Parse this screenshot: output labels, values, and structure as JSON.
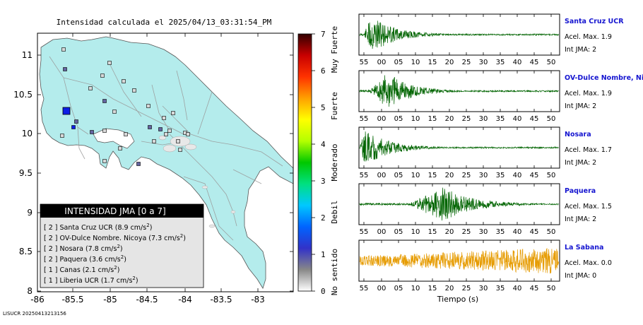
{
  "title": "Intensidad calculada el 2025/04/13_03:31:54_PM",
  "footer_id": "LISUCR 20250413213156",
  "map": {
    "x_ticks": [
      {
        "v": -86,
        "label": "-86"
      },
      {
        "v": -85.5,
        "label": "-85.5"
      },
      {
        "v": -85,
        "label": "-85"
      },
      {
        "v": -84.5,
        "label": "-84.5"
      },
      {
        "v": -84,
        "label": "-84"
      },
      {
        "v": -83.5,
        "label": "-83.5"
      },
      {
        "v": -83,
        "label": "-83"
      }
    ],
    "y_ticks": [
      {
        "v": 11,
        "label": "11"
      },
      {
        "v": 10.5,
        "label": "10.5"
      },
      {
        "v": 10,
        "label": "10"
      },
      {
        "v": 9.5,
        "label": "9.5"
      },
      {
        "v": 9,
        "label": "9"
      },
      {
        "v": 8.5,
        "label": "8.5"
      },
      {
        "v": 8,
        "label": "8"
      }
    ],
    "xlim": [
      -86,
      -83.5
    ],
    "ylim": [
      8,
      11.3
    ],
    "land_color": "#b4ecec",
    "sea_color": "#ffffff",
    "epicenter_color": "#0d1ee6"
  },
  "legend_box": {
    "title": "INTENSIDAD JMA [0 a 7]",
    "entries": [
      {
        "level": "[ 2 ]",
        "text": "Santa Cruz UCR (8.9 cm/s",
        "sup": "2",
        "end": ")"
      },
      {
        "level": "[ 2 ]",
        "text": "OV-Dulce Nombre. Nicoya (7.3 cm/s",
        "sup": "2",
        "end": ")"
      },
      {
        "level": "[ 2 ]",
        "text": "Nosara (7.8 cm/s",
        "sup": "2",
        "end": ")"
      },
      {
        "level": "[ 2 ]",
        "text": "Paquera (3.6 cm/s",
        "sup": "2",
        "end": ")"
      },
      {
        "level": "[ 1 ]",
        "text": "Canas (2.1 cm/s",
        "sup": "2",
        "end": ")"
      },
      {
        "level": "[ 1 ]",
        "text": "Liberia UCR (1.7 cm/s",
        "sup": "2",
        "end": ")"
      }
    ]
  },
  "colorbar": {
    "ticks": [
      "0",
      "1",
      "2",
      "3",
      "4",
      "5",
      "6",
      "7"
    ],
    "labels": [
      "No sentido",
      "Debil",
      "Moderado",
      "Fuerte",
      "Muy Fuerte"
    ],
    "colors": [
      "#ffffff",
      "#888888",
      "#3232c8",
      "#0064ff",
      "#00c8ff",
      "#00e080",
      "#00c800",
      "#b4ff00",
      "#ffff00",
      "#ffa000",
      "#ff3200",
      "#c80000",
      "#320000"
    ]
  },
  "chart_data": {
    "type": "line",
    "xlabel": "Tiempo (s)",
    "x_ticks": [
      "55",
      "00",
      "05",
      "10",
      "15",
      "20",
      "25",
      "30",
      "35",
      "40",
      "45",
      "50"
    ],
    "stations": [
      {
        "name": "Santa Cruz UCR",
        "accel": "Acel. Max. 1.9",
        "int": "Int JMA: 2",
        "color": "#006400",
        "amplitude": 1.0,
        "onset": 0.02,
        "peak": 0.06,
        "decay": 0.12
      },
      {
        "name": "OV-Dulce Nombre, Nicoya",
        "accel": "Acel. Max. 1.9",
        "int": "Int JMA: 2",
        "color": "#006400",
        "amplitude": 1.0,
        "onset": 0.05,
        "peak": 0.14,
        "decay": 0.12
      },
      {
        "name": "Nosara",
        "accel": "Acel. Max. 1.7",
        "int": "Int JMA: 2",
        "color": "#006400",
        "amplitude": 0.95,
        "onset": 0.0,
        "peak": 0.03,
        "decay": 0.12
      },
      {
        "name": "Paquera",
        "accel": "Acel. Max. 1.5",
        "int": "Int JMA: 2",
        "color": "#006400",
        "amplitude": 0.9,
        "onset": 0.25,
        "peak": 0.42,
        "decay": 0.15
      },
      {
        "name": "La Sabana",
        "accel": "Acel. Max. 0.0",
        "int": "Int JMA: 0",
        "color": "#e69b00",
        "amplitude": 0.7,
        "onset": 0.0,
        "peak": 0.85,
        "decay": 0.5
      }
    ]
  }
}
